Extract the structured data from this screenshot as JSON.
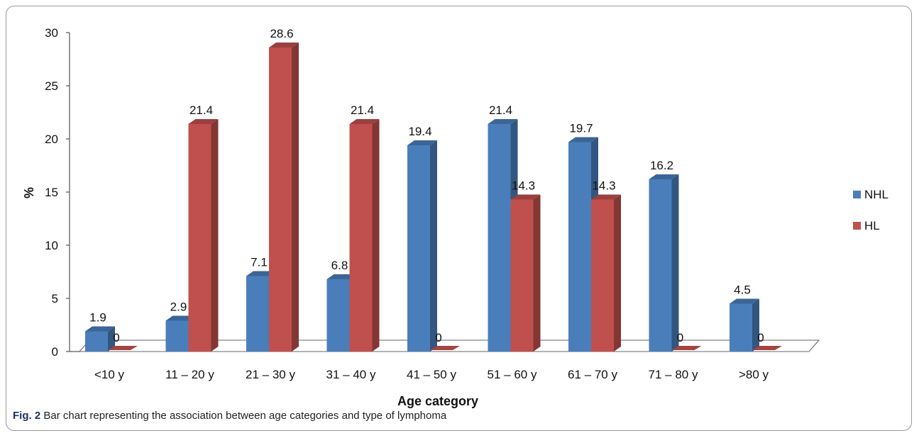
{
  "chart_data": {
    "type": "bar",
    "title": "",
    "xlabel": "Age category",
    "ylabel": "%",
    "ylim": [
      0,
      30
    ],
    "yticks": [
      0,
      5,
      10,
      15,
      20,
      25,
      30
    ],
    "categories": [
      "<10 y",
      "11 – 20 y",
      "21 – 30 y",
      "31 – 40 y",
      "41 – 50 y",
      "51 – 60 y",
      "61 – 70 y",
      "71 – 80 y",
      ">80 y"
    ],
    "series": [
      {
        "name": "NHL",
        "values": [
          1.9,
          2.9,
          7.1,
          6.8,
          19.4,
          21.4,
          19.7,
          16.2,
          4.5
        ],
        "labels": [
          "1.9",
          "2.9",
          "7.1",
          "6.8",
          "19.4",
          "21.4",
          "19.7",
          "16.2",
          "4.5"
        ],
        "color": "#4a7ebb"
      },
      {
        "name": "HL",
        "values": [
          0,
          21.4,
          28.6,
          21.4,
          0,
          14.3,
          14.3,
          0,
          0
        ],
        "labels": [
          "0",
          "21.4",
          "28.6",
          "21.4",
          "0",
          "14.3",
          "14.3",
          "0",
          "0"
        ],
        "color": "#c0504d"
      }
    ],
    "legend_position": "right",
    "grid": false,
    "style": "3d-bar"
  },
  "caption": {
    "label": "Fig. 2",
    "text": "Bar chart representing the association between age categories and type of lymphoma"
  }
}
